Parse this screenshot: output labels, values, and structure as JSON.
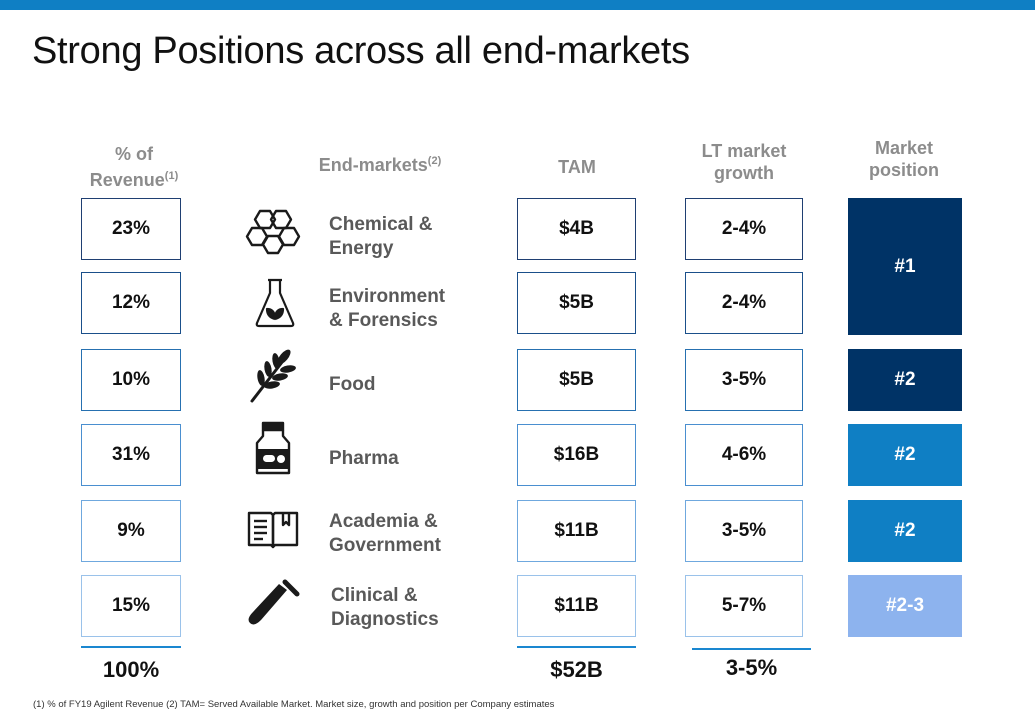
{
  "title": "Strong Positions across all end-markets",
  "headers": {
    "revenue_line1": "% of",
    "revenue_line2": "Revenue",
    "revenue_note": "(1)",
    "endmarkets": "End-markets",
    "endmarkets_note": "(2)",
    "tam": "TAM",
    "growth_line1": "LT market",
    "growth_line2": "growth",
    "position_line1": "Market",
    "position_line2": "position"
  },
  "rows": [
    {
      "revenue": "23%",
      "label1": "Chemical &",
      "label2": "Energy",
      "icon": "hexagon-molecule-icon",
      "tam": "$4B",
      "growth": "2-4%"
    },
    {
      "revenue": "12%",
      "label1": "Environment",
      "label2": "& Forensics",
      "icon": "flask-leaf-icon",
      "tam": "$5B",
      "growth": "2-4%"
    },
    {
      "revenue": "10%",
      "label1": "Food",
      "label2": "",
      "icon": "wheat-icon",
      "tam": "$5B",
      "growth": "3-5%"
    },
    {
      "revenue": "31%",
      "label1": "Pharma",
      "label2": "",
      "icon": "medicine-bottle-icon",
      "tam": "$16B",
      "growth": "4-6%"
    },
    {
      "revenue": "9%",
      "label1": "Academia &",
      "label2": "Government",
      "icon": "open-book-icon",
      "tam": "$11B",
      "growth": "3-5%"
    },
    {
      "revenue": "15%",
      "label1": "Clinical &",
      "label2": "Diagnostics",
      "icon": "test-tube-icon",
      "tam": "$11B",
      "growth": "5-7%"
    }
  ],
  "positions": [
    {
      "label": "#1",
      "color": "#003366"
    },
    {
      "label": "#2",
      "color": "#003366"
    },
    {
      "label": "#2",
      "color": "#0f7fc4"
    },
    {
      "label": "#2",
      "color": "#0f7fc4"
    },
    {
      "label": "#2-3",
      "color": "#8db3ee"
    }
  ],
  "totals": {
    "revenue": "100%",
    "tam": "$52B",
    "growth": "3-5%"
  },
  "footnote": "(1) % of FY19 Agilent Revenue  (2) TAM= Served Available Market. Market size, growth and position per Company estimates"
}
